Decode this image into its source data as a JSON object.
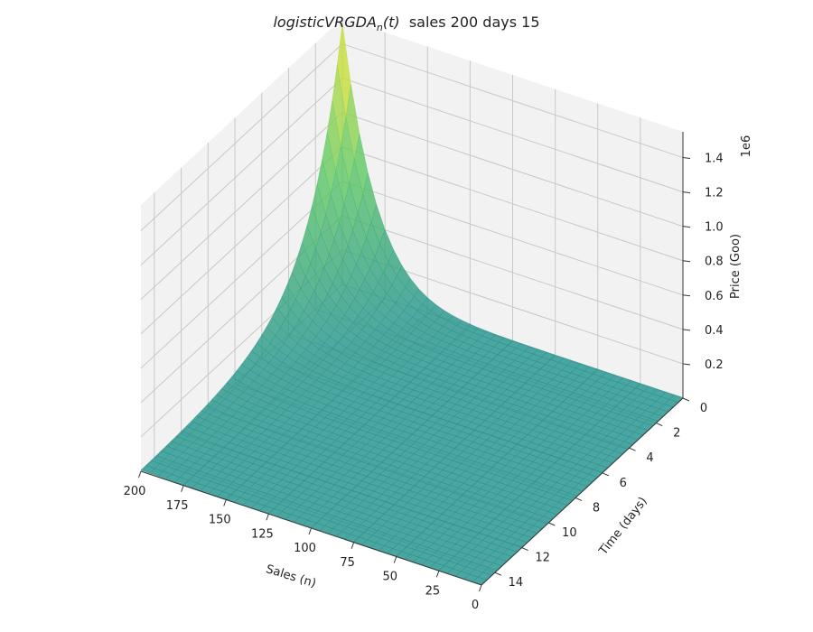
{
  "chart_data": {
    "type": "surface3d",
    "title": {
      "main": "logisticVRGDA",
      "sub": "n",
      "arg": "(t)",
      "suffix": "  sales 200 days 15"
    },
    "xlabel": "Sales (n)",
    "ylabel": "Time (days)",
    "zlabel": "Price (Goo)",
    "z_offset_label": "1e6",
    "xlim": [
      0,
      200
    ],
    "ylim": [
      0,
      15
    ],
    "zlim": [
      0,
      1.55
    ],
    "x_ticks": [
      "200",
      "175",
      "150",
      "125",
      "100",
      "75",
      "50",
      "25",
      "0"
    ],
    "y_ticks": [
      "0",
      "2",
      "4",
      "6",
      "8",
      "10",
      "12",
      "14"
    ],
    "z_ticks": [
      "0.2",
      "0.4",
      "0.6",
      "0.8",
      "1.0",
      "1.2",
      "1.4"
    ],
    "x_tick_values": [
      200,
      175,
      150,
      125,
      100,
      75,
      50,
      25,
      0
    ],
    "y_tick_values": [
      0,
      2,
      4,
      6,
      8,
      10,
      12,
      14
    ],
    "z_tick_values": [
      0.2,
      0.4,
      0.6,
      0.8,
      1.0,
      1.2,
      1.4
    ],
    "surface": {
      "x": [
        0,
        25,
        50,
        75,
        100,
        125,
        150,
        175,
        200
      ],
      "y": [
        0,
        2,
        4,
        6,
        8,
        10,
        12,
        14,
        15
      ],
      "peak_point": {
        "x": 200,
        "y": 0,
        "z": 1.52
      },
      "colormap": "viridis",
      "alpha": 0.8
    },
    "grid": true,
    "pane_color": "#f2f2f2"
  }
}
